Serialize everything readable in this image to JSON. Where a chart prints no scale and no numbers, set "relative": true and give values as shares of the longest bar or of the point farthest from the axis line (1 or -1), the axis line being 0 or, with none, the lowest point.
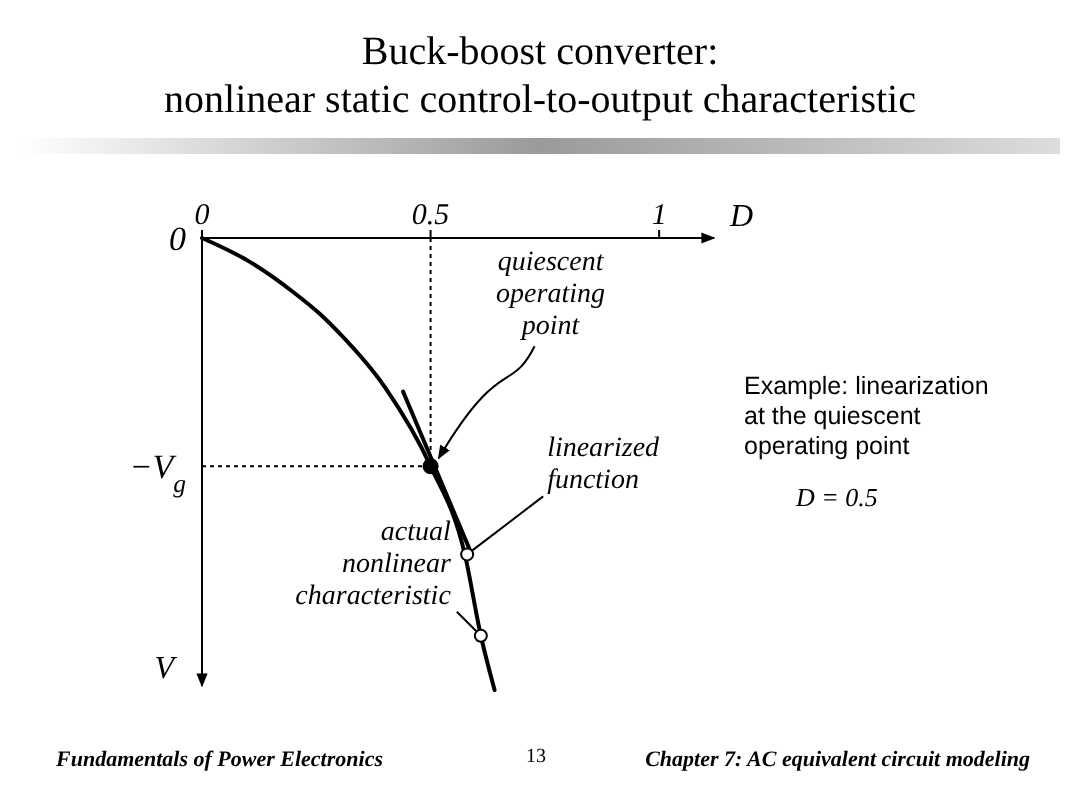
{
  "chart_data": {
    "type": "line",
    "relative": true,
    "title": "Buck-boost converter:",
    "subtitle": "nonlinear static control-to-output characteristic",
    "xlabel": "D",
    "ylabel": "V",
    "xlim": [
      0,
      1.12
    ],
    "xticks": [
      0,
      0.5,
      1
    ],
    "series": [
      {
        "color": "#000000",
        "x": [
          0,
          0.1,
          0.2,
          0.26,
          0.3,
          0.4,
          0.5,
          0.575,
          0.61,
          0.64
        ],
        "values": [
          0,
          -0.05,
          -0.12,
          -0.17,
          -0.21,
          -0.33,
          -0.505,
          -0.7,
          -0.88,
          -1
        ]
      },
      {
        "color": "#000000",
        "x": [
          0.44,
          0.59
        ],
        "values": [
          -0.34,
          -0.7
        ]
      },
      {
        "type": "scatter",
        "color": "#000000",
        "marker": "circle",
        "x": [
          0.5
        ],
        "values": [
          -0.505
        ]
      }
    ],
    "ref_lines": [
      {
        "axis": "x",
        "value": 0.5,
        "line_style": "dotted"
      },
      {
        "axis": "y",
        "value": -0.505,
        "label": "−V$_{g}$",
        "line_style": "dotted"
      }
    ],
    "annotations": [
      {
        "text": "quiescent operating point",
        "x": 0.5,
        "y": -0.505
      },
      {
        "text": "linearized function",
        "x": 0.58,
        "y": -0.7
      },
      {
        "text": "actual nonlinear characteristic",
        "x": 0.61,
        "y": -0.88
      },
      "Example: linearization at the quiescent operating point",
      "D = 0.5",
      "Fundamentals of Power Electronics",
      "13",
      "Chapter 7: AC equivalent circuit modeling",
      "0"
    ]
  }
}
